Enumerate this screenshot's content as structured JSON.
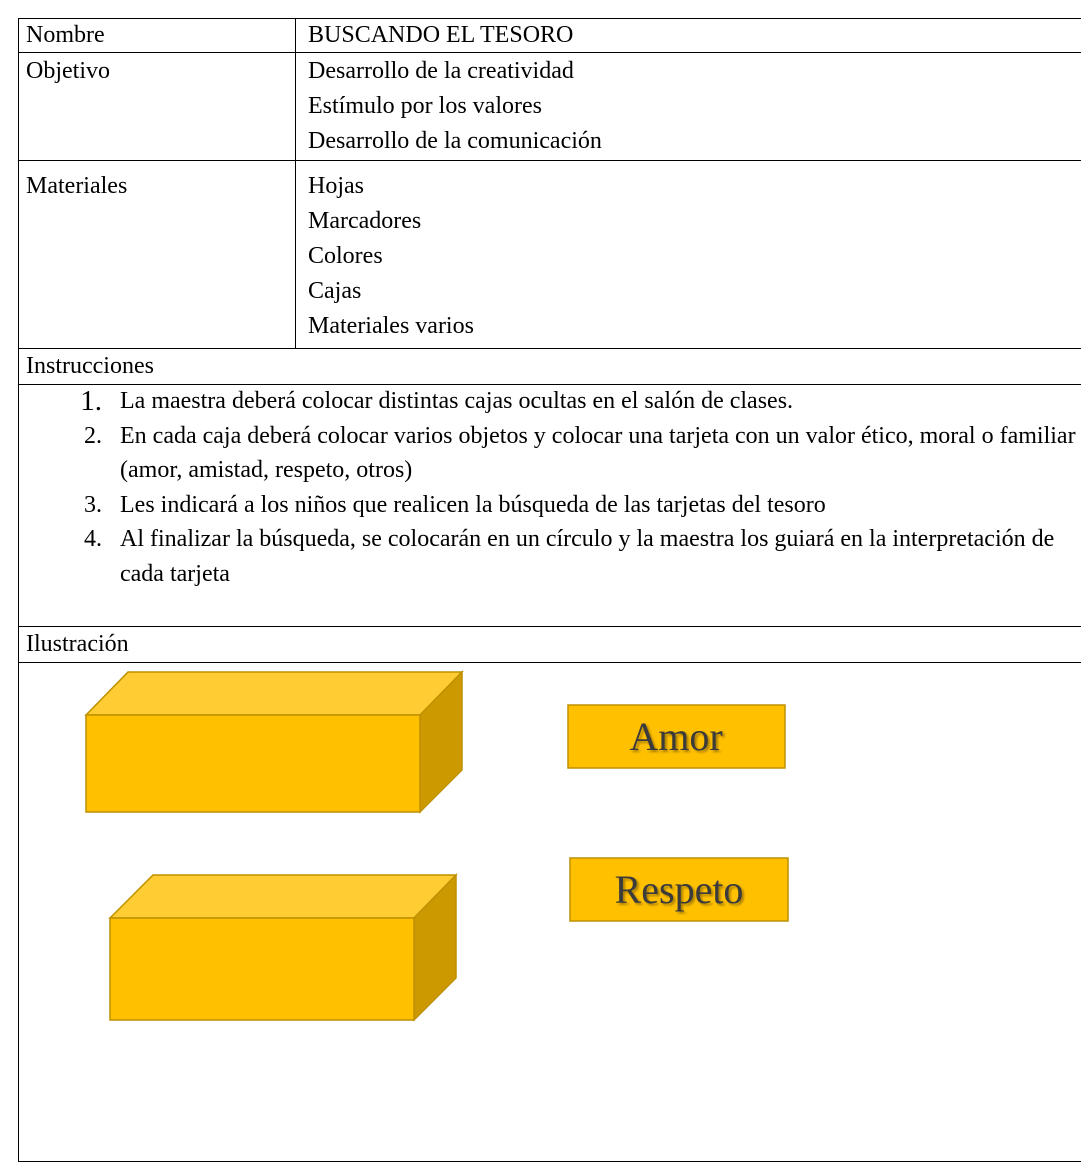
{
  "rows": [
    {
      "label": "Nombre",
      "values": [
        "BUSCANDO EL TESORO"
      ]
    },
    {
      "label": "Objetivo",
      "values": [
        "Desarrollo de la creatividad",
        "Estímulo por los valores",
        "Desarrollo de la comunicación"
      ]
    },
    {
      "label": "Materiales",
      "values": [
        "Hojas",
        "Marcadores",
        "Colores",
        "Cajas",
        "Materiales varios"
      ]
    }
  ],
  "instructions": {
    "title": "Instrucciones",
    "steps": [
      {
        "number": "1.",
        "text": "La maestra deberá colocar distintas cajas ocultas en el salón de clases."
      },
      {
        "number": "2.",
        "text": "En cada caja deberá colocar varios objetos y colocar una tarjeta con un valor ético, moral o familiar (amor, amistad, respeto, otros)"
      },
      {
        "number": "3.",
        "text": "Les indicará a los niños que realicen la búsqueda de las tarjetas del tesoro"
      },
      {
        "number": "4.",
        "text": "Al finalizar la búsqueda, se colocarán en un círculo y la maestra los guiará en la interpretación de cada tarjeta"
      }
    ]
  },
  "illustration": {
    "title": "Ilustración",
    "cards": [
      "Amor",
      "Respeto"
    ]
  }
}
